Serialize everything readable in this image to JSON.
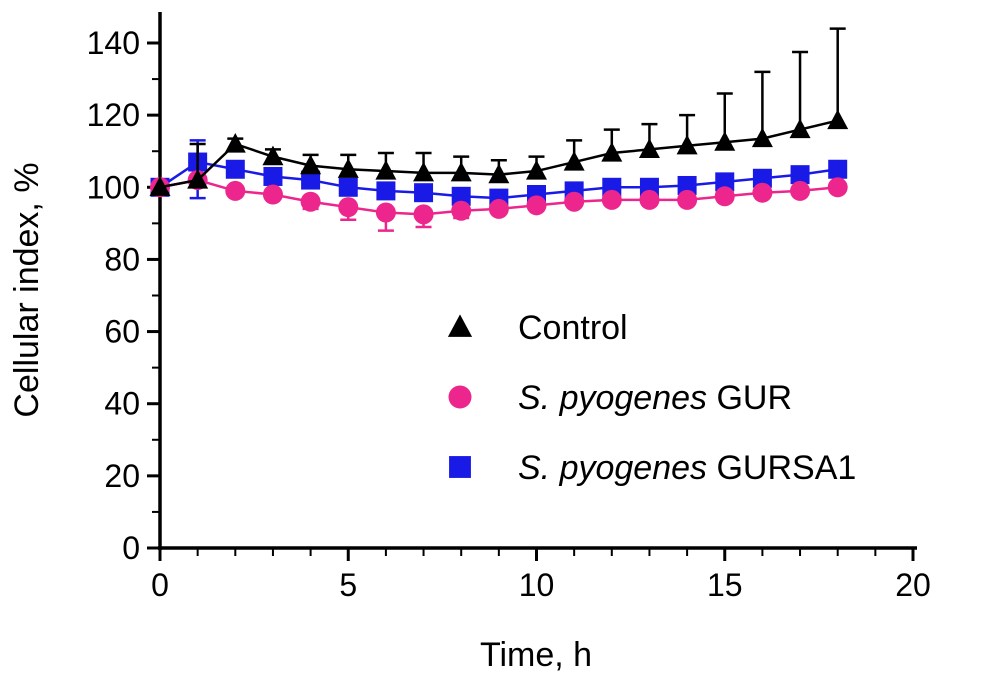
{
  "figure": {
    "background": "#ffffff",
    "axis_color": "#000000"
  },
  "chart_data": {
    "type": "line",
    "title": "",
    "xlabel": "Time, h",
    "ylabel": "Cellular index, %",
    "xlim": [
      0,
      20
    ],
    "ylim": [
      0,
      140
    ],
    "x_ticks": [
      0,
      5,
      10,
      15,
      20
    ],
    "y_ticks": [
      0,
      20,
      40,
      60,
      80,
      100,
      120,
      140
    ],
    "x_minor_step": 1,
    "y_minor_step": 10,
    "grid": false,
    "legend_position": "inside-center",
    "x": [
      0,
      1,
      2,
      3,
      4,
      5,
      6,
      7,
      8,
      9,
      10,
      11,
      12,
      13,
      14,
      15,
      16,
      17,
      18
    ],
    "series": [
      {
        "name": "Control",
        "label_italic": "",
        "label_regular": "Control",
        "marker": "triangle",
        "color": "#000000",
        "values": [
          100,
          102,
          112,
          108.5,
          106,
          105,
          104.5,
          104,
          104,
          103.5,
          104.5,
          107,
          109.5,
          110.5,
          111.5,
          112.5,
          113.5,
          116,
          118.5
        ],
        "err_up": [
          0,
          10,
          1.5,
          2,
          3,
          4,
          5,
          5.5,
          4.5,
          4,
          4,
          6,
          6.5,
          7,
          8.5,
          13.5,
          18.5,
          21.5,
          25.5
        ],
        "err_down": [
          0,
          0,
          0,
          0,
          0,
          0,
          0,
          0,
          0,
          0,
          0,
          0,
          0,
          0,
          0,
          0,
          0,
          0,
          0
        ]
      },
      {
        "name": "S. pyogenes GUR",
        "label_italic": "S. pyogenes",
        "label_regular": "GUR",
        "marker": "circle",
        "color": "#EC268D",
        "values": [
          100,
          102,
          99,
          98,
          96,
          94.5,
          93,
          92.5,
          93.5,
          94,
          95,
          96,
          96.5,
          96.5,
          96.5,
          97.5,
          98.5,
          99,
          100
        ],
        "err_up": [
          0,
          0,
          0,
          0,
          0,
          0,
          0,
          0,
          0,
          0,
          0,
          0,
          0,
          0,
          0,
          0,
          0,
          0,
          0
        ],
        "err_down": [
          0,
          0,
          0,
          0,
          2,
          3.5,
          5,
          3.5,
          2,
          0,
          0,
          0,
          0,
          0,
          0,
          0,
          0,
          0,
          0
        ]
      },
      {
        "name": "S. pyogenes GURSA1",
        "label_italic": "S. pyogenes",
        "label_regular": "GURSA1",
        "marker": "square",
        "color": "#1A1AE6",
        "values": [
          100,
          107,
          105,
          103,
          102,
          100,
          99,
          98.5,
          97.5,
          97,
          98,
          99,
          100,
          100,
          100.5,
          101.5,
          102.5,
          103.5,
          105
        ],
        "err_up": [
          0,
          6,
          0,
          0,
          0,
          0,
          0,
          0,
          0,
          0,
          0,
          0,
          0,
          0,
          0,
          0,
          0,
          0,
          0
        ],
        "err_down": [
          0,
          10,
          0,
          0,
          0,
          0,
          0,
          0,
          0,
          0,
          0,
          0,
          0,
          0,
          0,
          0,
          0,
          0,
          0
        ]
      }
    ]
  }
}
